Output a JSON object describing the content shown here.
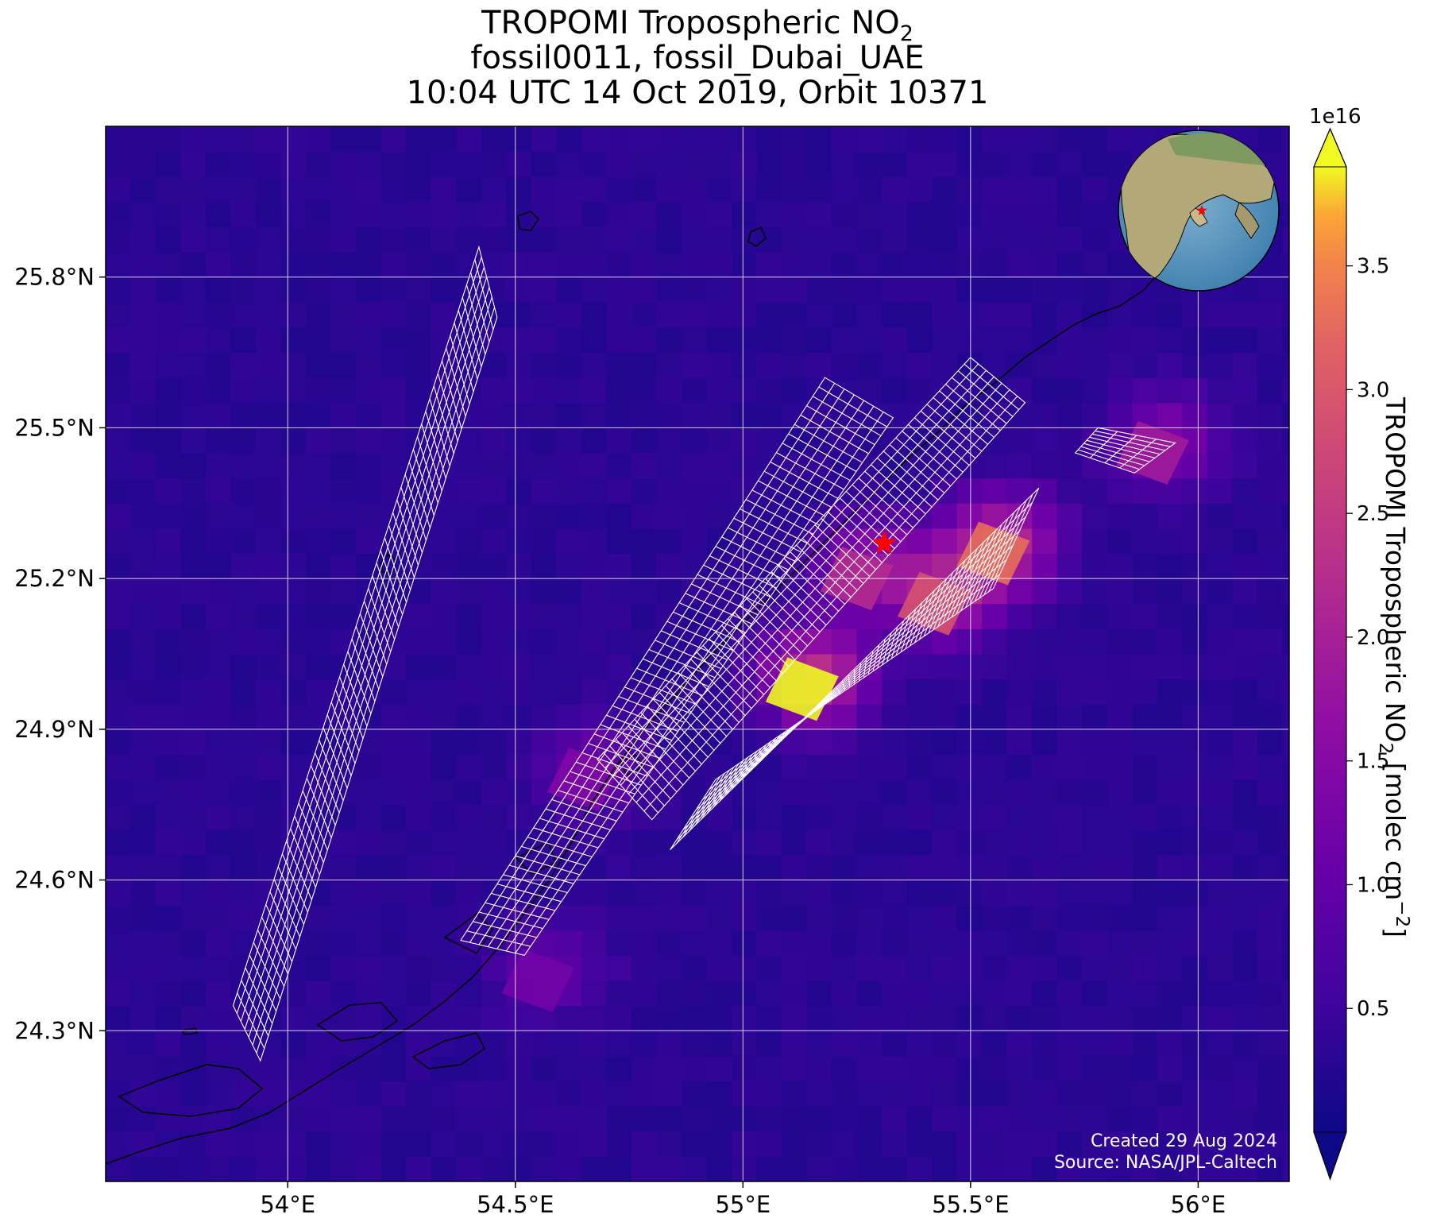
{
  "title": {
    "line1": "TROPOMI Tropospheric NO",
    "line1_sub": "2",
    "line2": "fossil0011, fossil_Dubai_UAE",
    "line3": "10:04 UTC 14 Oct 2019, Orbit 10371"
  },
  "map": {
    "lon_range": [
      53.6,
      56.2
    ],
    "lat_range": [
      24.0,
      26.1
    ],
    "x_ticks": [
      {
        "value": 54.0,
        "label": "54°E"
      },
      {
        "value": 54.5,
        "label": "54.5°E"
      },
      {
        "value": 55.0,
        "label": "55°E"
      },
      {
        "value": 55.5,
        "label": "55.5°E"
      },
      {
        "value": 56.0,
        "label": "56°E"
      }
    ],
    "y_ticks": [
      {
        "value": 24.3,
        "label": "24.3°N"
      },
      {
        "value": 24.6,
        "label": "24.6°N"
      },
      {
        "value": 24.9,
        "label": "24.9°N"
      },
      {
        "value": 25.2,
        "label": "25.2°N"
      },
      {
        "value": 25.5,
        "label": "25.5°N"
      },
      {
        "value": 25.8,
        "label": "25.8°N"
      }
    ],
    "grid": true,
    "target_marker": {
      "lon": 55.31,
      "lat": 25.27,
      "color": "#ff0000",
      "symbol": "star"
    },
    "colormap": "plasma"
  },
  "colorbar": {
    "label": "TROPOMI Tropospheric NO",
    "label_sub": "2",
    "label_units": " [molec cm",
    "label_sup": "−2",
    "label_end": "]",
    "multiplier": "1e16",
    "range": [
      0.0,
      3.9
    ],
    "extend": "both",
    "ticks": [
      {
        "value": 0.5,
        "label": "0.5"
      },
      {
        "value": 1.0,
        "label": "1.0"
      },
      {
        "value": 1.5,
        "label": "1.5"
      },
      {
        "value": 2.0,
        "label": "2.0"
      },
      {
        "value": 2.5,
        "label": "2.5"
      },
      {
        "value": 3.0,
        "label": "3.0"
      },
      {
        "value": 3.5,
        "label": "3.5"
      }
    ]
  },
  "inset_globe": {
    "description": "orthographic globe centered on Arabian Peninsula",
    "marker": "red-star"
  },
  "credit": {
    "line1": "Created 29 Aug 2024",
    "line2": "Source: NASA/JPL-Caltech"
  },
  "hotspots": [
    {
      "lon": 55.13,
      "lat": 24.98,
      "value": 3.9
    },
    {
      "lon": 55.55,
      "lat": 25.25,
      "value": 3.3
    },
    {
      "lon": 55.42,
      "lat": 25.15,
      "value": 2.9
    },
    {
      "lon": 55.25,
      "lat": 25.2,
      "value": 2.2
    },
    {
      "lon": 55.9,
      "lat": 25.45,
      "value": 1.9
    },
    {
      "lon": 54.65,
      "lat": 24.8,
      "value": 1.4
    },
    {
      "lon": 54.55,
      "lat": 24.4,
      "value": 1.2
    }
  ],
  "footprints": [
    {
      "name": "swath-west",
      "corners_lonlat": [
        [
          53.88,
          24.35
        ],
        [
          54.42,
          25.86
        ],
        [
          54.46,
          25.72
        ],
        [
          53.94,
          24.24
        ]
      ]
    },
    {
      "name": "swath-center",
      "corners_lonlat": [
        [
          54.38,
          24.48
        ],
        [
          55.18,
          25.6
        ],
        [
          55.33,
          25.52
        ],
        [
          54.52,
          24.45
        ]
      ]
    },
    {
      "name": "swath-coast",
      "corners_lonlat": [
        [
          54.68,
          24.84
        ],
        [
          55.5,
          25.64
        ],
        [
          55.62,
          25.55
        ],
        [
          54.8,
          24.72
        ]
      ]
    },
    {
      "name": "swath-south",
      "corners_lonlat": [
        [
          54.84,
          24.66
        ],
        [
          55.65,
          25.38
        ],
        [
          55.55,
          25.18
        ],
        [
          54.94,
          24.8
        ]
      ]
    },
    {
      "name": "patch-east",
      "corners_lonlat": [
        [
          55.73,
          25.45
        ],
        [
          55.78,
          25.5
        ],
        [
          55.95,
          25.47
        ],
        [
          55.86,
          25.41
        ]
      ]
    }
  ]
}
